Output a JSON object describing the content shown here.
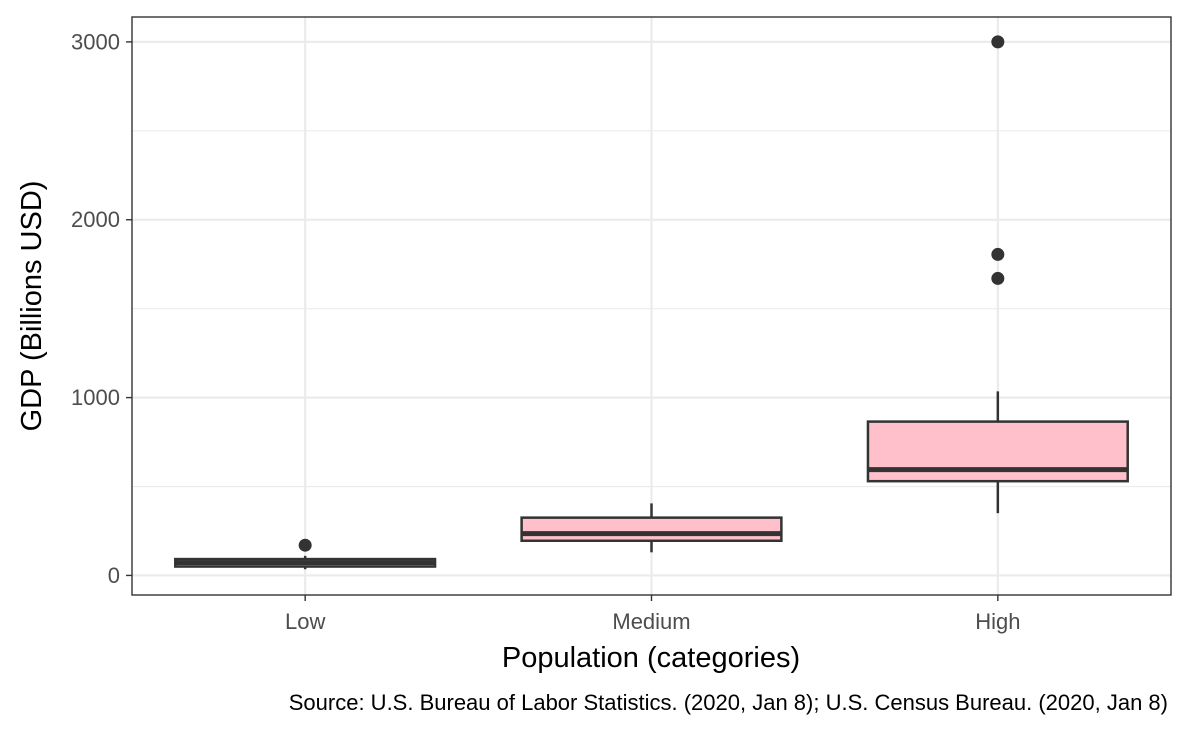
{
  "chart_data": {
    "type": "boxplot",
    "title": "",
    "xlabel": "Population (categories)",
    "ylabel": "GDP (Billions USD)",
    "caption": "Source: U.S. Bureau of Labor Statistics. (2020, Jan 8); U.S. Census Bureau. (2020, Jan 8)",
    "categories": [
      "Low",
      "Medium",
      "High"
    ],
    "ylim": [
      -110,
      3140
    ],
    "yticks": [
      0,
      1000,
      2000,
      3000
    ],
    "grid": true,
    "boxes": [
      {
        "category": "Low",
        "whisker_low": 35,
        "q1": 50,
        "median": 72,
        "q3": 92,
        "whisker_high": 110,
        "outliers": [
          170
        ]
      },
      {
        "category": "Medium",
        "whisker_low": 130,
        "q1": 195,
        "median": 235,
        "q3": 325,
        "whisker_high": 405,
        "outliers": []
      },
      {
        "category": "High",
        "whisker_low": 350,
        "q1": 530,
        "median": 595,
        "q3": 865,
        "whisker_high": 1035,
        "outliers": [
          1670,
          1805,
          3000
        ]
      }
    ],
    "colors": {
      "box_fill": "#ffc0cb",
      "box_stroke": "#333333",
      "grid": "#ebebeb",
      "panel_border": "#333333"
    }
  }
}
